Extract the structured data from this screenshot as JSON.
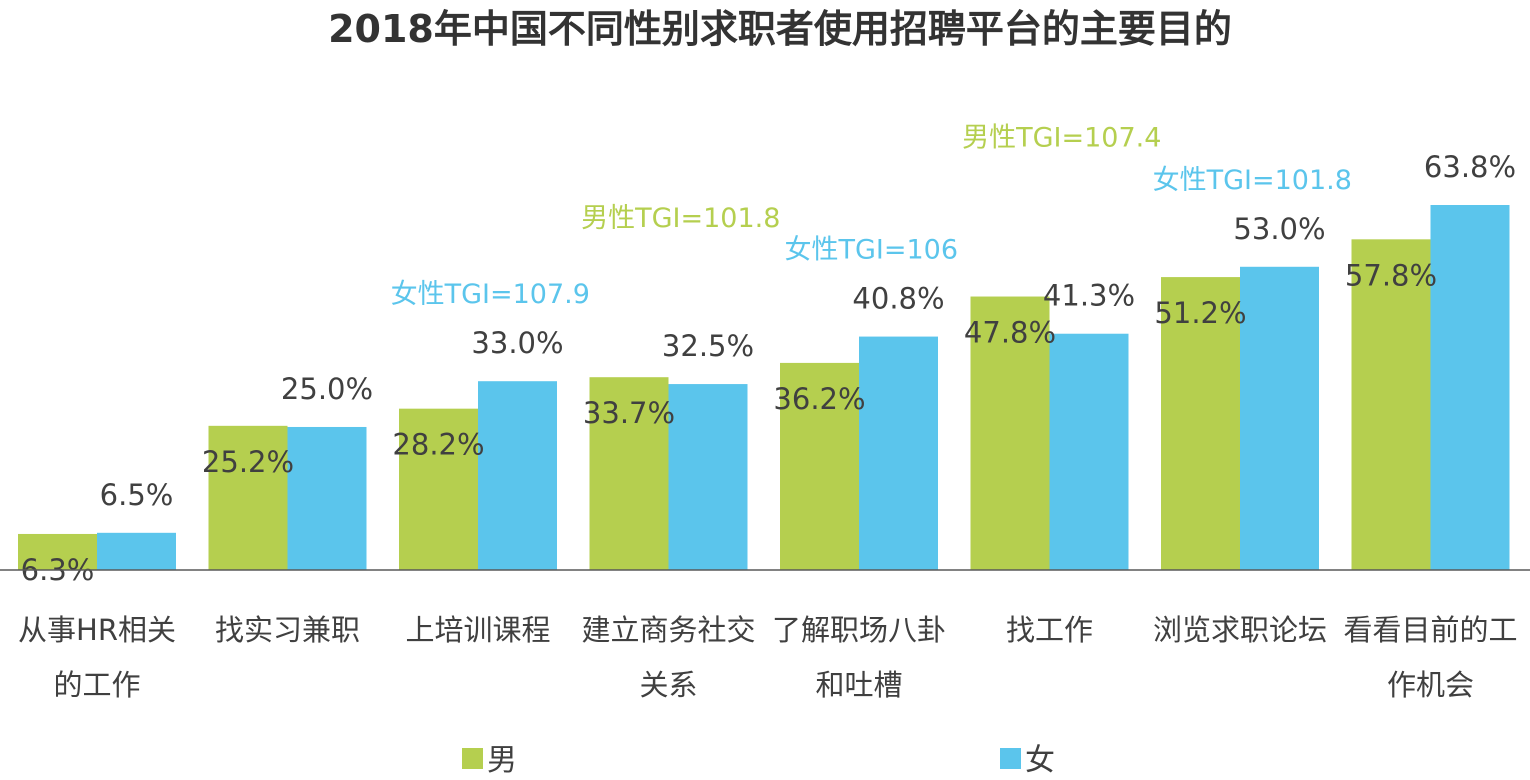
{
  "chart_data": {
    "type": "bar",
    "title": "2018年中国不同性别求职者使用招聘平台的主要目的",
    "categories": [
      [
        "从事HR相关",
        "的工作"
      ],
      [
        "找实习兼职"
      ],
      [
        "上培训课程"
      ],
      [
        "建立商务社交",
        "关系"
      ],
      [
        "了解职场八卦",
        "和吐槽"
      ],
      [
        "找工作"
      ],
      [
        "浏览求职论坛"
      ],
      [
        "看看目前的工",
        "作机会"
      ]
    ],
    "series": [
      {
        "name": "男",
        "color": "#b5cf4f",
        "values": [
          6.3,
          25.2,
          28.2,
          33.7,
          36.2,
          47.8,
          51.2,
          57.8
        ],
        "labels": [
          "6.3%",
          "25.2%",
          "28.2%",
          "33.7%",
          "36.2%",
          "47.8%",
          "51.2%",
          "57.8%"
        ]
      },
      {
        "name": "女",
        "color": "#5bc5ec",
        "values": [
          6.5,
          25.0,
          33.0,
          32.5,
          40.8,
          41.3,
          53.0,
          63.8
        ],
        "labels": [
          "6.5%",
          "25.0%",
          "33.0%",
          "32.5%",
          "40.8%",
          "41.3%",
          "53.0%",
          "63.8%"
        ]
      }
    ],
    "annotations": [
      {
        "text": "女性TGI=107.9",
        "category": 2,
        "series": 1
      },
      {
        "text": "男性TGI=101.8",
        "category": 3,
        "series": 0
      },
      {
        "text": "女性TGI=106",
        "category": 4,
        "series": 1
      },
      {
        "text": "男性TGI=107.4",
        "category": 5,
        "series": 0
      },
      {
        "text": "女性TGI=101.8",
        "category": 6,
        "series": 1
      }
    ],
    "ylim": [
      0,
      70
    ],
    "grid": false,
    "legend": "bottom",
    "text_color": "#404040",
    "title_color": "#333333"
  }
}
